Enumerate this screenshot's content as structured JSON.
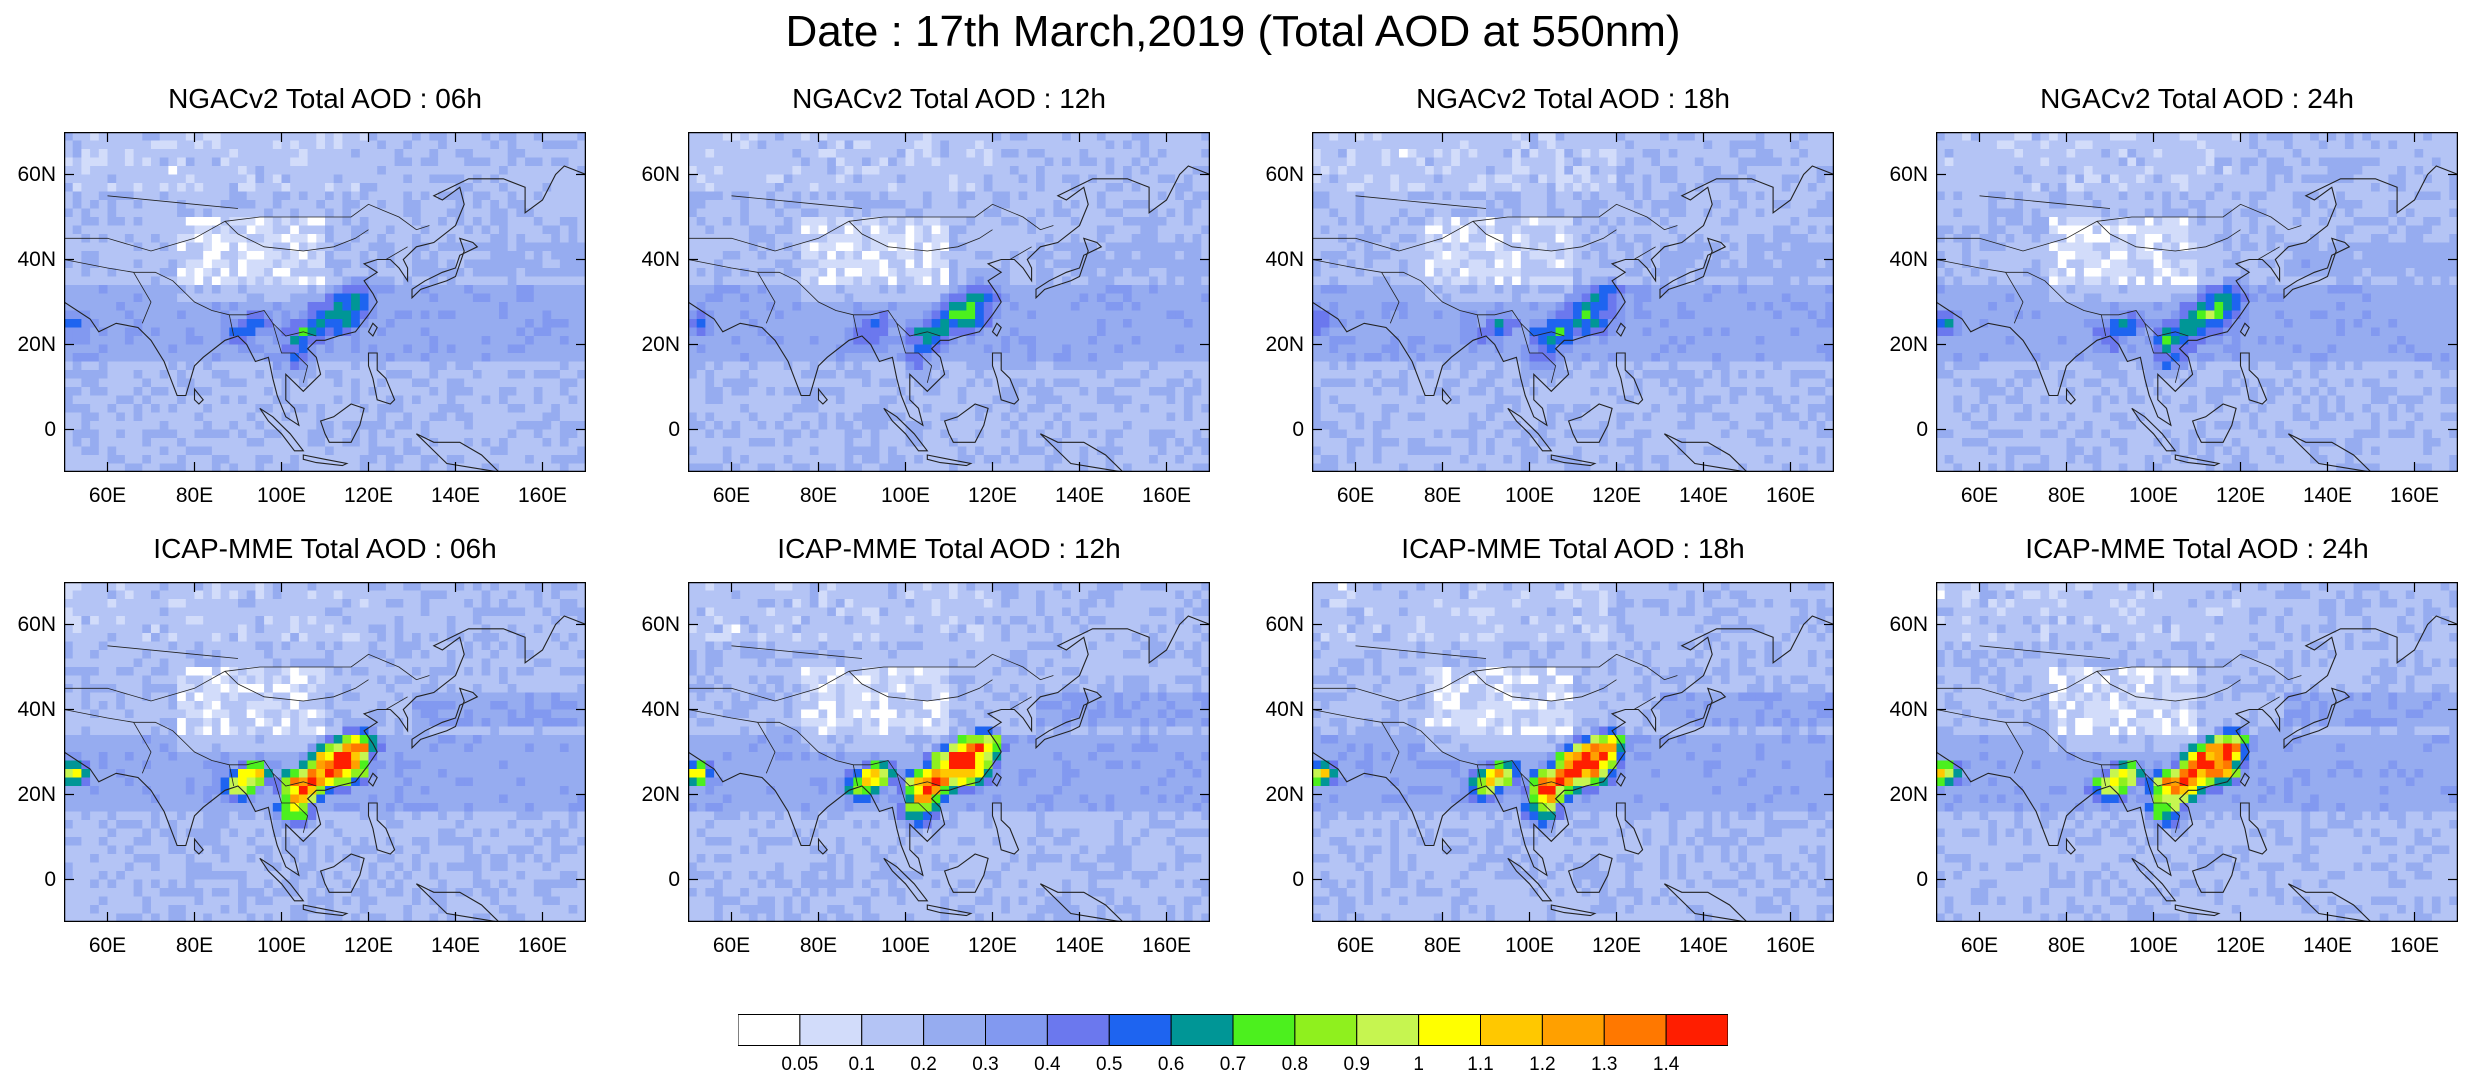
{
  "title": "Date : 17th March,2019 (Total AOD at 550nm)",
  "panels": [
    {
      "title": "NGACv2 Total AOD : 06h",
      "model": "NGACv2",
      "hour": "06h",
      "intensity": 0.3,
      "seed": 11
    },
    {
      "title": "NGACv2 Total AOD : 12h",
      "model": "NGACv2",
      "hour": "12h",
      "intensity": 0.3,
      "seed": 23
    },
    {
      "title": "NGACv2 Total AOD : 18h",
      "model": "NGACv2",
      "hour": "18h",
      "intensity": 0.3,
      "seed": 37
    },
    {
      "title": "NGACv2 Total AOD : 24h",
      "model": "NGACv2",
      "hour": "24h",
      "intensity": 0.35,
      "seed": 41
    },
    {
      "title": "ICAP-MME Total AOD : 06h",
      "model": "ICAP-MME",
      "hour": "06h",
      "intensity": 1.0,
      "seed": 53
    },
    {
      "title": "ICAP-MME Total AOD : 12h",
      "model": "ICAP-MME",
      "hour": "12h",
      "intensity": 1.0,
      "seed": 67
    },
    {
      "title": "ICAP-MME Total AOD : 18h",
      "model": "ICAP-MME",
      "hour": "18h",
      "intensity": 1.0,
      "seed": 71
    },
    {
      "title": "ICAP-MME Total AOD : 24h",
      "model": "ICAP-MME",
      "hour": "24h",
      "intensity": 1.0,
      "seed": 83
    }
  ],
  "axes": {
    "lat_ticks": [
      "60N",
      "40N",
      "20N",
      "0"
    ],
    "lon_ticks": [
      "60E",
      "80E",
      "100E",
      "120E",
      "140E",
      "160E"
    ]
  },
  "colorbar": {
    "labels": [
      "0.05",
      "0.1",
      "0.2",
      "0.3",
      "0.4",
      "0.5",
      "0.6",
      "0.7",
      "0.8",
      "0.9",
      "1",
      "1.1",
      "1.2",
      "1.3",
      "1.4"
    ],
    "colors": [
      "#ffffff",
      "#d2dcfa",
      "#b4c4f5",
      "#96acf0",
      "#8299f0",
      "#6b78ee",
      "#1e64f0",
      "#009696",
      "#4cf01e",
      "#8ff01e",
      "#c6f550",
      "#ffff00",
      "#ffc800",
      "#ffa000",
      "#ff7800",
      "#ff1e00"
    ]
  }
}
